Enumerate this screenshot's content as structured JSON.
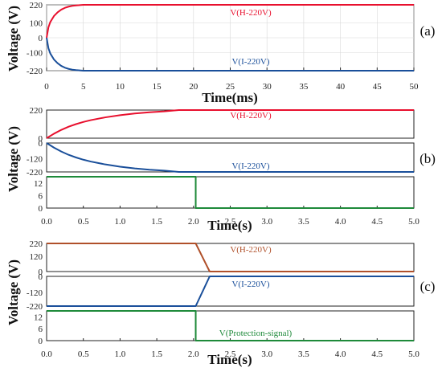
{
  "chart_data": [
    {
      "panel": "(a)",
      "type": "line",
      "ylabel": "Voltage (V)",
      "xlabel": "Time(ms)",
      "xlim": [
        0,
        50
      ],
      "xticks": [
        "0",
        "5",
        "10",
        "15",
        "20",
        "25",
        "30",
        "35",
        "40",
        "45",
        "50"
      ],
      "subplots": [
        {
          "ylim": [
            -220,
            220
          ],
          "yticks": [
            "220",
            "100",
            "0",
            "-100",
            "-220"
          ],
          "grid": true,
          "series": [
            {
              "name": "V(H-220V)",
              "color": "#e8102e",
              "x": [
                0,
                0.25,
                0.5,
                1,
                1.5,
                2,
                2.5,
                3,
                3.5,
                4,
                4.5,
                5,
                50
              ],
              "y": [
                0,
                70,
                105,
                145,
                170,
                188,
                200,
                208,
                213,
                216,
                218,
                220,
                220
              ]
            },
            {
              "name": "V(I-220V)",
              "color": "#1a4f9a",
              "x": [
                0,
                0.25,
                0.5,
                1,
                1.5,
                2,
                2.5,
                3,
                3.5,
                4,
                4.5,
                5,
                50
              ],
              "y": [
                0,
                -70,
                -105,
                -145,
                -170,
                -188,
                -200,
                -208,
                -213,
                -216,
                -218,
                -220,
                -220
              ]
            }
          ]
        }
      ]
    },
    {
      "panel": "(b)",
      "type": "line",
      "ylabel": "Voltage (V)",
      "xlabel": "Time(s)",
      "xlim": [
        0,
        5
      ],
      "xticks": [
        "0.0",
        "0.5",
        "1.0",
        "1.5",
        "2.0",
        "2.5",
        "3.0",
        "3.5",
        "4.0",
        "4.5",
        "5.0"
      ],
      "subplots": [
        {
          "ylim": [
            0,
            220
          ],
          "yticks": [
            "220",
            "0"
          ],
          "series": [
            {
              "name": "V(H-220V)",
              "color": "#e8102e",
              "x": [
                0,
                0.1,
                0.2,
                0.3,
                0.4,
                0.5,
                0.6,
                0.8,
                1.0,
                1.2,
                1.4,
                1.6,
                1.8,
                5.0
              ],
              "y": [
                0,
                35,
                65,
                90,
                110,
                127,
                141,
                163,
                180,
                193,
                203,
                210,
                220,
                220
              ]
            }
          ]
        },
        {
          "ylim": [
            -220,
            0
          ],
          "yticks": [
            "0",
            "-120",
            "-220"
          ],
          "series": [
            {
              "name": "V(I-220V)",
              "color": "#1a4f9a",
              "x": [
                0,
                0.1,
                0.2,
                0.3,
                0.4,
                0.5,
                0.6,
                0.8,
                1.0,
                1.2,
                1.4,
                1.6,
                1.8,
                5.0
              ],
              "y": [
                0,
                -35,
                -65,
                -90,
                -110,
                -127,
                -141,
                -163,
                -180,
                -193,
                -203,
                -210,
                -220,
                -220
              ]
            }
          ]
        },
        {
          "ylim": [
            0,
            15
          ],
          "yticks": [
            "12",
            "6",
            "0"
          ],
          "series": [
            {
              "color": "#1e8a3a",
              "x": [
                0,
                2.03,
                2.03,
                5.0
              ],
              "y": [
                15,
                15,
                0,
                0
              ]
            }
          ]
        }
      ]
    },
    {
      "panel": "(c)",
      "type": "line",
      "ylabel": "Voltage (V)",
      "xlabel": "Time(s)",
      "xlim": [
        0,
        5
      ],
      "xticks": [
        "0.0",
        "0.5",
        "1.0",
        "1.5",
        "2.0",
        "2.5",
        "3.0",
        "3.5",
        "4.0",
        "4.5",
        "5.0"
      ],
      "subplots": [
        {
          "ylim": [
            0,
            220
          ],
          "yticks": [
            "220",
            "120",
            "0"
          ],
          "series": [
            {
              "name": "V(H-220V)",
              "color": "#b0502a",
              "x": [
                0,
                2.03,
                2.22,
                5.0
              ],
              "y": [
                220,
                220,
                0,
                0
              ]
            }
          ]
        },
        {
          "ylim": [
            -220,
            0
          ],
          "yticks": [
            "0",
            "-120",
            "-220"
          ],
          "series": [
            {
              "name": "V(I-220V)",
              "color": "#1a4f9a",
              "x": [
                0,
                2.03,
                2.22,
                5.0
              ],
              "y": [
                -220,
                -220,
                0,
                0
              ]
            }
          ]
        },
        {
          "ylim": [
            0,
            15
          ],
          "yticks": [
            "12",
            "6",
            "0"
          ],
          "series": [
            {
              "name": "V(Protection-signal)",
              "color": "#1e8a3a",
              "x": [
                0,
                2.03,
                2.03,
                5.0
              ],
              "y": [
                15,
                15,
                0,
                0
              ]
            }
          ]
        }
      ]
    }
  ]
}
